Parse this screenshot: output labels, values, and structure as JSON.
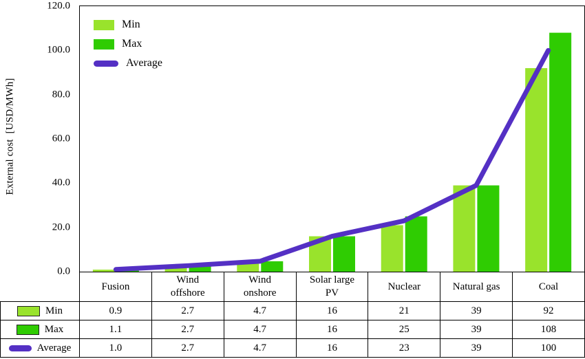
{
  "chart_data": {
    "type": "bar",
    "title": "",
    "categories": [
      "Fusion",
      "Wind offshore",
      "Wind onshore",
      "Solar large PV",
      "Nuclear",
      "Natural gas",
      "Coal"
    ],
    "series": [
      {
        "name": "Min",
        "type": "bar",
        "color": "#99E32C",
        "values": [
          0.9,
          2.7,
          4.7,
          16,
          21,
          39,
          92
        ],
        "display": [
          "0.9",
          "2.7",
          "4.7",
          "16",
          "21",
          "39",
          "92"
        ]
      },
      {
        "name": "Max",
        "type": "bar",
        "color": "#2FCC02",
        "values": [
          1.1,
          2.7,
          4.7,
          16,
          25,
          39,
          108
        ],
        "display": [
          "1.1",
          "2.7",
          "4.7",
          "16",
          "25",
          "39",
          "108"
        ]
      },
      {
        "name": "Average",
        "type": "line",
        "color": "#5430C4",
        "values": [
          1.0,
          2.7,
          4.7,
          16,
          23,
          39,
          100
        ],
        "display": [
          "1.0",
          "2.7",
          "4.7",
          "16",
          "23",
          "39",
          "100"
        ]
      }
    ],
    "ylabel": "External cost  [USD/MWh]",
    "xlabel": "",
    "ylim": [
      0,
      120
    ],
    "ytick_step": 20,
    "ytick_labels": [
      "0.0",
      "20.0",
      "40.0",
      "60.0",
      "80.0",
      "100.0",
      "120.0"
    ],
    "grid": false,
    "legend_position": "top-left"
  }
}
